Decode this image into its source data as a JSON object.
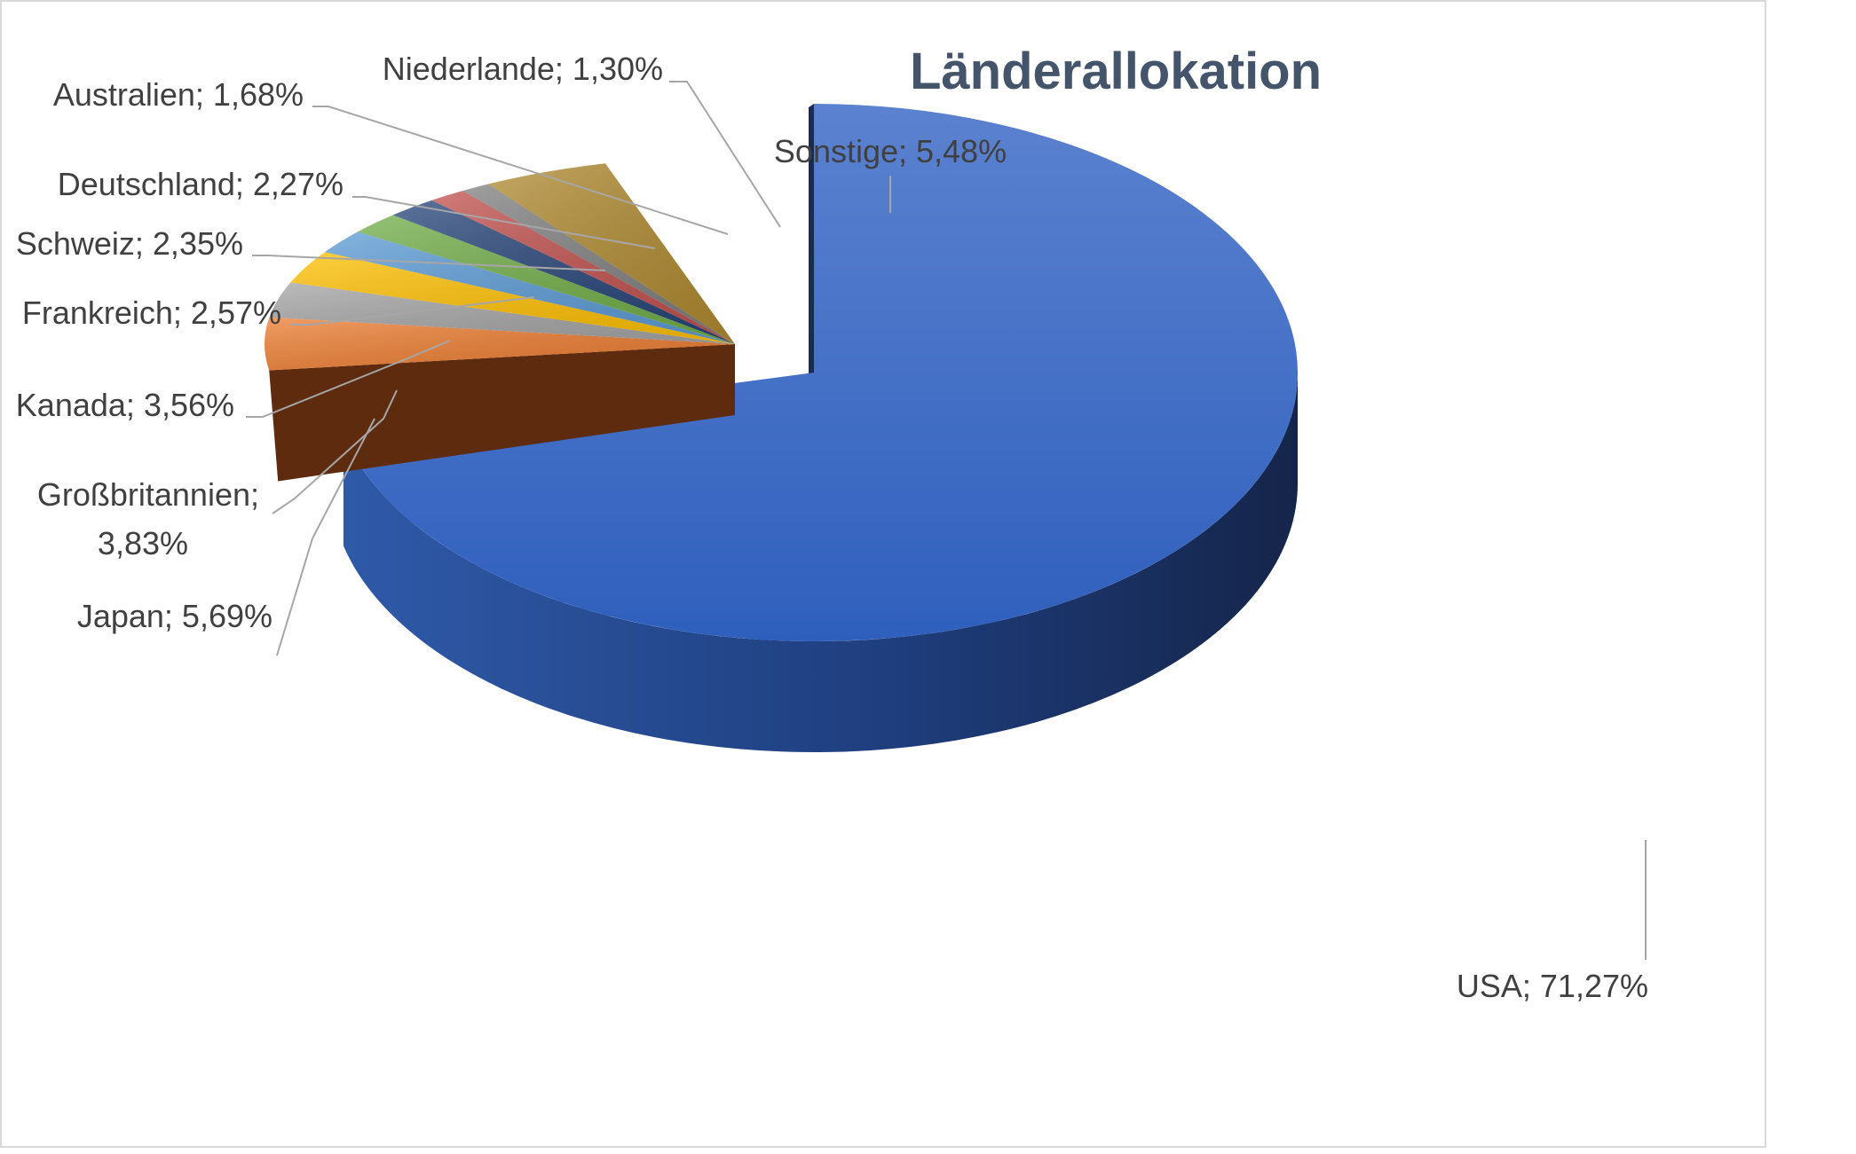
{
  "chart_data": {
    "type": "pie",
    "title": "Länderallokation",
    "slices": [
      {
        "name": "USA",
        "value": 71.27,
        "label": "USA; 71,27%",
        "color": "#4472c4",
        "side": "#1f3864"
      },
      {
        "name": "Japan",
        "value": 5.69,
        "label": "Japan; 5,69%",
        "color": "#ed7d31",
        "side": "#843c0c"
      },
      {
        "name": "Großbritannien",
        "value": 3.83,
        "label_lines": [
          "Großbritannien;",
          "3,83%"
        ],
        "color": "#a5a5a5",
        "side": "#595959"
      },
      {
        "name": "Kanada",
        "value": 3.56,
        "label": "Kanada; 3,56%",
        "color": "#ffc000",
        "side": "#7f6000"
      },
      {
        "name": "Frankreich",
        "value": 2.57,
        "label": "Frankreich; 2,57%",
        "color": "#5b9bd5",
        "side": "#1f4e79"
      },
      {
        "name": "Schweiz",
        "value": 2.35,
        "label": "Schweiz; 2,35%",
        "color": "#70ad47",
        "side": "#375623"
      },
      {
        "name": "Deutschland",
        "value": 2.27,
        "label": "Deutschland; 2,27%",
        "color": "#264478",
        "side": "#10203d"
      },
      {
        "name": "Australien",
        "value": 1.68,
        "label": "Australien; 1,68%",
        "color": "#c0504d",
        "side": "#632523"
      },
      {
        "name": "Niederlande",
        "value": 1.3,
        "label": "Niederlande; 1,30%",
        "color": "#7f7f7f",
        "side": "#404040"
      },
      {
        "name": "Sonstige",
        "value": 5.48,
        "label": "Sonstige; 5,48%",
        "color": "#b08a30",
        "side": "#6b5110"
      }
    ],
    "legend": "none",
    "style": "3d-pie-exploded"
  }
}
